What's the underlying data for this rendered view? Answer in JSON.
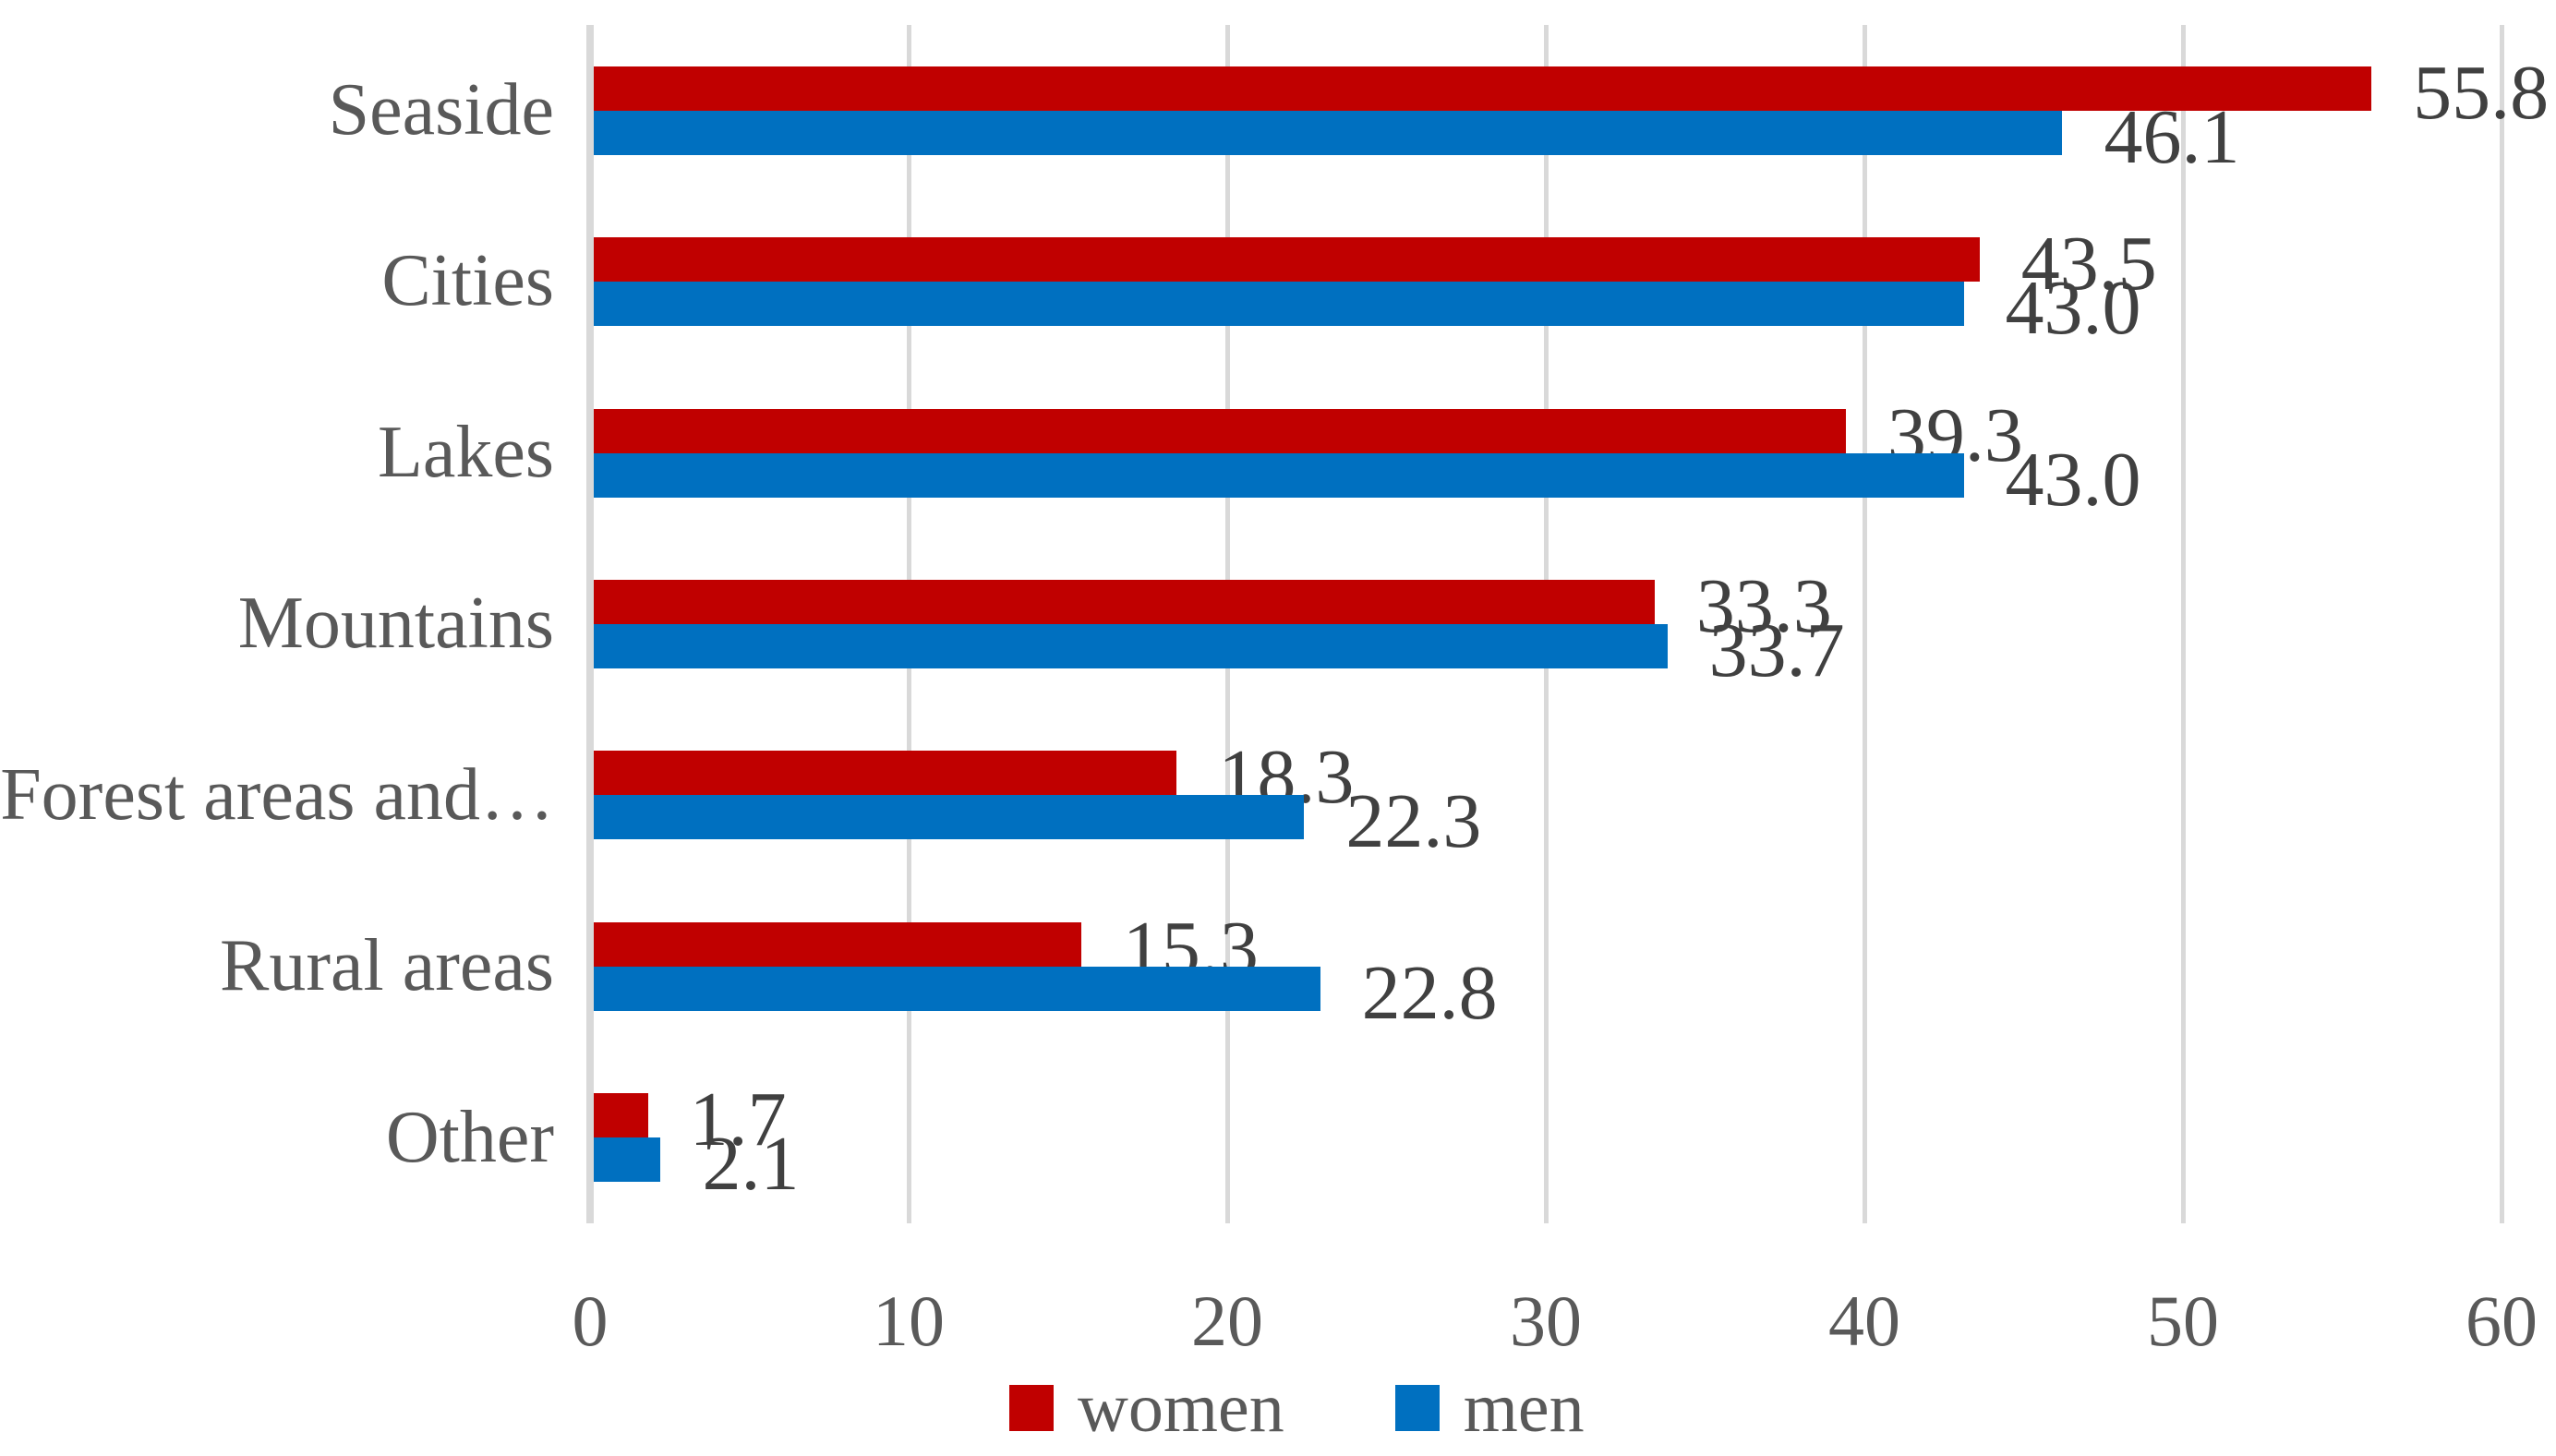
{
  "chart_data": {
    "type": "bar",
    "orientation": "horizontal",
    "title": "",
    "categories": [
      "Seaside",
      "Cities",
      "Lakes",
      "Mountains",
      "Forest areas and…",
      "Rural areas",
      "Other"
    ],
    "series": [
      {
        "name": "women",
        "color": "#c00000",
        "values": [
          55.8,
          43.5,
          39.3,
          33.3,
          18.3,
          15.3,
          1.7
        ]
      },
      {
        "name": "men",
        "color": "#0070c0",
        "values": [
          46.1,
          43.0,
          43.0,
          33.7,
          22.3,
          22.8,
          2.1
        ]
      }
    ],
    "xlabel": "",
    "ylabel": "",
    "xlim": [
      0,
      60
    ],
    "xticks": [
      0,
      10,
      20,
      30,
      40,
      50,
      60
    ],
    "grid": "vertical",
    "legend_position": "bottom",
    "data_labels": true,
    "label_decimals": 1
  },
  "style": {
    "women_color": "#c00000",
    "men_color": "#0070c0",
    "gridline_color": "#d9d9d9",
    "axis_line_color": "#d9d9d9",
    "category_text_color": "#595959",
    "tick_text_color": "#595959",
    "value_text_color": "#404040",
    "background_color": "#ffffff"
  }
}
